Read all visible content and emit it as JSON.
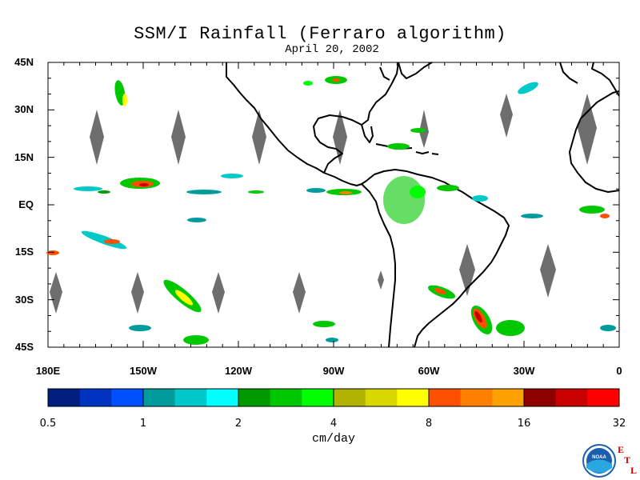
{
  "title": "SSM/I Rainfall (Ferraro algorithm)",
  "date": "April 20, 2002",
  "y_axis": {
    "ticks": [
      {
        "value": 45,
        "label": "45N"
      },
      {
        "value": 30,
        "label": "30N"
      },
      {
        "value": 15,
        "label": "15N"
      },
      {
        "value": 0,
        "label": "EQ"
      },
      {
        "value": -15,
        "label": "15S"
      },
      {
        "value": -30,
        "label": "30S"
      },
      {
        "value": -45,
        "label": "45S"
      }
    ],
    "range": [
      -45,
      45
    ]
  },
  "x_axis": {
    "ticks": [
      {
        "value": -180,
        "label": "180E"
      },
      {
        "value": -150,
        "label": "150W"
      },
      {
        "value": -120,
        "label": "120W"
      },
      {
        "value": -90,
        "label": "90W"
      },
      {
        "value": -60,
        "label": "60W"
      },
      {
        "value": -30,
        "label": "30W"
      },
      {
        "value": 0,
        "label": "0"
      }
    ],
    "range": [
      -180,
      0
    ]
  },
  "colorbar": {
    "units": "cm/day",
    "labels": [
      "0.5",
      "1",
      "2",
      "4",
      "8",
      "16",
      "32"
    ],
    "colors": [
      "#001f7f",
      "#0033c0",
      "#0050ff",
      "#009b9b",
      "#00c9c9",
      "#00ffff",
      "#009a00",
      "#00c800",
      "#00ff00",
      "#b2b200",
      "#d8d800",
      "#ffff00",
      "#ff5000",
      "#ff8000",
      "#ffa000",
      "#8f0000",
      "#c80000",
      "#ff0000"
    ]
  },
  "colors": {
    "coast": "#000000",
    "no_data_gap": "#6e6e6e",
    "frame": "#000000"
  },
  "logo": {
    "text": "NOAA",
    "etl_letters": [
      "E",
      "T",
      "L"
    ]
  }
}
